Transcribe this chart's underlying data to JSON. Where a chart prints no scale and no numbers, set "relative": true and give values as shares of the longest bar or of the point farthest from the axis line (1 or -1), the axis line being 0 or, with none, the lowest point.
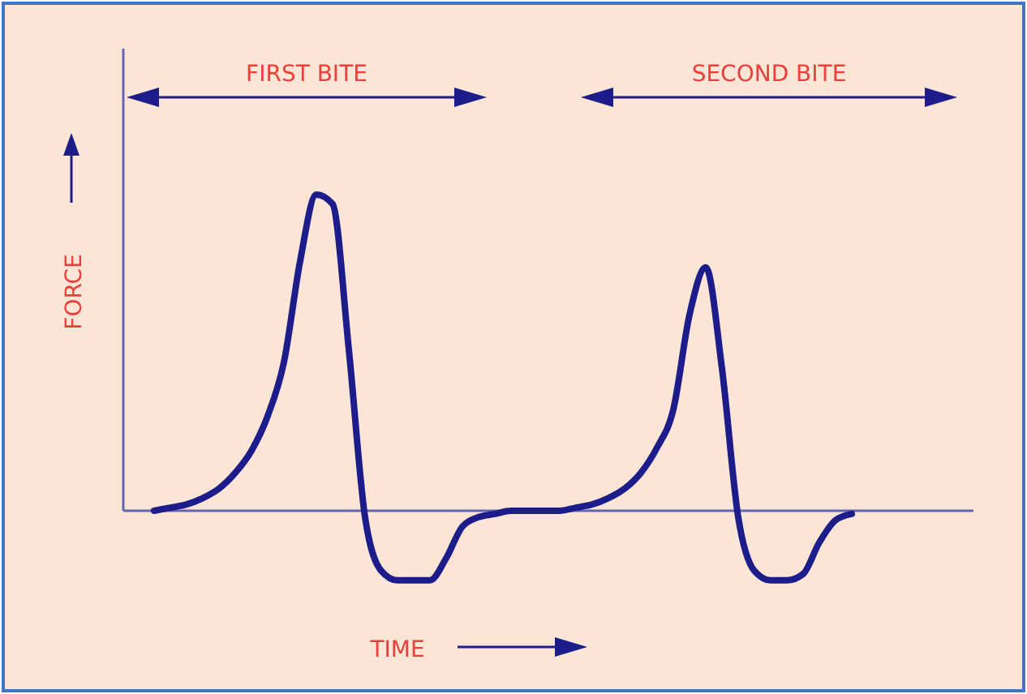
{
  "chart_data": {
    "type": "line",
    "relative": true,
    "xlabel": "TIME",
    "ylabel": "FORCE",
    "annotations": [
      "FIRST BITE",
      "SECOND BITE"
    ],
    "categories": [
      null,
      null,
      null,
      null,
      null,
      null,
      null,
      null,
      null,
      null,
      null,
      null,
      null,
      null,
      null,
      null,
      null,
      null,
      null,
      null,
      null,
      null,
      null,
      null,
      null,
      null,
      null,
      null,
      null,
      null,
      null,
      null,
      null,
      null,
      null,
      null,
      null,
      null,
      null,
      null,
      null,
      null,
      null,
      null
    ],
    "series": [
      {
        "color": "#1c1c8a",
        "values": [
          0,
          0.01,
          0.02,
          0.04,
          0.07,
          0.12,
          0.19,
          0.3,
          0.47,
          0.79,
          1,
          0.97,
          0.51,
          -0.02,
          -0.19,
          -0.22,
          -0.22,
          -0.22,
          -0.15,
          -0.05,
          -0.02,
          -0.01,
          0,
          0,
          0,
          0,
          0.01,
          0.02,
          0.04,
          0.07,
          0.12,
          0.2,
          0.32,
          0.62,
          0.77,
          0.45,
          -0.02,
          -0.19,
          -0.22,
          -0.22,
          -0.2,
          -0.1,
          -0.03,
          -0.01
        ]
      }
    ],
    "ref_lines": [
      {
        "axis": "y",
        "value": 0,
        "color": "#6464b4"
      }
    ],
    "grid": false,
    "marker": "none",
    "line_style": "solid"
  }
}
